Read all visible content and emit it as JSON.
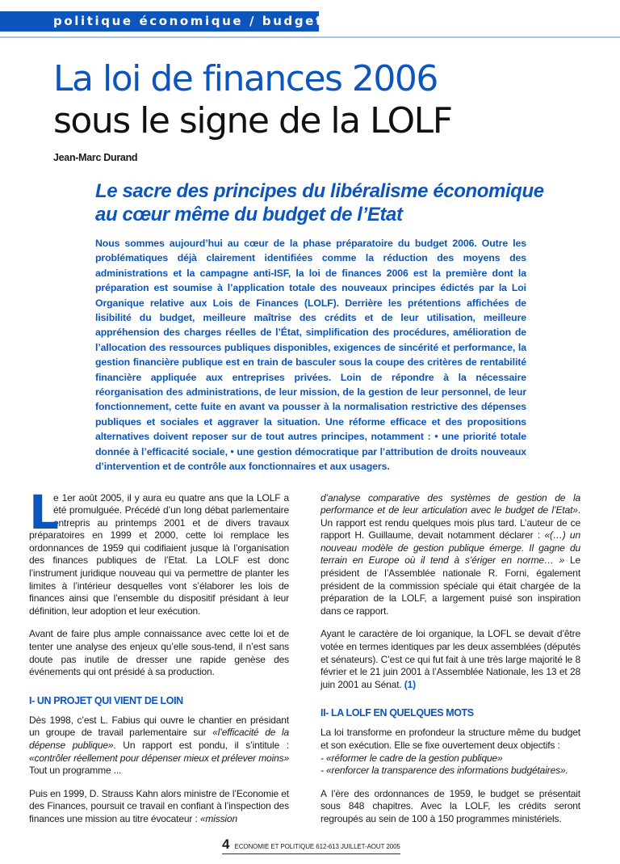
{
  "section_band": "politique économique / budget",
  "title": {
    "line1": "La loi de finances 2006",
    "line2": "sous le signe de la LOLF"
  },
  "author": "Jean-Marc Durand",
  "subtitle": "Le sacre des principes du libéralisme économique au cœur même du budget de l’Etat",
  "intro": "Nous sommes aujourd’hui au cœur de la phase préparatoire du budget 2006. Outre les problématiques déjà clairement identifiées comme la réduction des moyens des administrations et la campagne anti-ISF, la loi de finances 2006 est la première dont la préparation est soumise à l’application totale des nouveaux principes édictés par la Loi Organique relative aux Lois de Finances (LOLF). Derrière les prétentions affichées de lisibilité du budget, meilleure maîtrise des crédits et de leur utilisation, meilleure appréhension des charges réelles de l’État, simplification des procédures, amélioration de l’allocation des ressources publiques disponibles, exigences de sincérité et performance, la gestion financière publique est en train de basculer sous la coupe des critères de rentabilité financière appliquée aux entreprises privées. Loin de répondre à la nécessaire réorganisation des administrations, de leur mission, de la gestion de leur personnel, de leur fonctionnement, cette fuite en avant va pousser à la normalisation restrictive des dépenses publiques et sociales et aggraver la situation. Une réforme efficace et des propositions alternatives doivent reposer sur de tout autres principes, notamment : • une priorité totale donnée à l’efficacité sociale, • une gestion démocratique par l’attribution de droits nouveaux d’intervention et de contrôle aux fonctionnaires et aux usagers.",
  "body": {
    "p1": {
      "dropcap": "L",
      "text": "e 1er août 2005, il y aura eu quatre ans que la LOLF a été promulguée. Précédé d’un long débat parlementaire entrepris au printemps 2001 et de divers travaux préparatoires en 1999 et 2000, cette loi remplace les ordonnances de 1959 qui codifiaient jusque là l’organisation des finances publiques de l’Etat. La LOLF est donc l’instrument juridique nouveau qui va permettre de planter les limites à l’intérieur desquelles vont s’élaborer les lois de finances ainsi que l’ensemble du dispositif présidant à leur définition, leur adoption et leur exécution."
    },
    "p2": "Avant de faire plus ample connaissance avec cette loi et de tenter une analyse des enjeux qu’elle sous-tend, il n’est sans doute pas inutile de dresser une rapide genèse des événements qui ont présidé à sa production.",
    "heading1": "I- UN PROJET QUI VIENT DE LOIN",
    "p3": [
      "Dès 1998, c’est L. Fabius qui ouvre le chantier en présidant un groupe de travail parlementaire sur ",
      "«l’efficacité de la dépense publique»",
      ". Un rapport est pondu, il s’intitule : ",
      "«contrôler réellement pour dépenser mieux et prélever moins»",
      " Tout un programme ..."
    ],
    "p4": [
      "Puis en 1999, D. Strauss Kahn alors ministre de l’Economie et des Finances, poursuit ce travail en confiant à l’inspection des finances une mission au titre évocateur : ",
      "«mission"
    ],
    "p5": [
      "d’analyse comparative des systèmes de gestion de la performance et de leur articulation avec le budget de l’Etat»",
      ". Un rapport est rendu quelques mois plus tard. L’auteur de ce rapport H. Guillaume, devait notamment déclarer : ",
      "«(…) un nouveau modèle de gestion publique émerge. Il gagne du terrain en Europe où il tend à s’ériger en norme… »",
      " Le président de l’Assemblée nationale R. Forni, également président de la commission spéciale qui était chargée de la préparation de la LOLF, a largement puisé son inspiration dans ce rapport."
    ],
    "p6": {
      "text": "Ayant le caractère de loi organique, la LOFL se devait d’être votée en termes identiques par les deux assemblées (députés et sénateurs). C’est ce qui fut fait à une très large majorité le 8 février et le 21 juin 2001 à l’Assemblée Nationale, les 13 et 28 juin 2001 au Sénat. ",
      "ref": "(1)"
    },
    "heading2": "II- LA LOLF EN QUELQUES MOTS",
    "p7": {
      "text": "La loi transforme en profondeur la structure même du budget et son exécution. Elle se fixe ouvertement deux objectifs :",
      "items": [
        "- «réformer le cadre de la gestion publique»",
        "- «renforcer la transparence des informations budgétaires»."
      ]
    },
    "p8": "A l’ère des ordonnances de 1959, le budget se présentait sous 848 chapitres. Avec la LOLF, les crédits seront regroupés au sein de 100 à 150 programmes ministériels."
  },
  "footer": {
    "page": "4",
    "publication": "ECONOMIE ET POLITIQUE 612-613 JUILLET-AOUT 2005"
  },
  "colors": {
    "accent": "#0b55bd",
    "rule": "#a9c3e6"
  }
}
